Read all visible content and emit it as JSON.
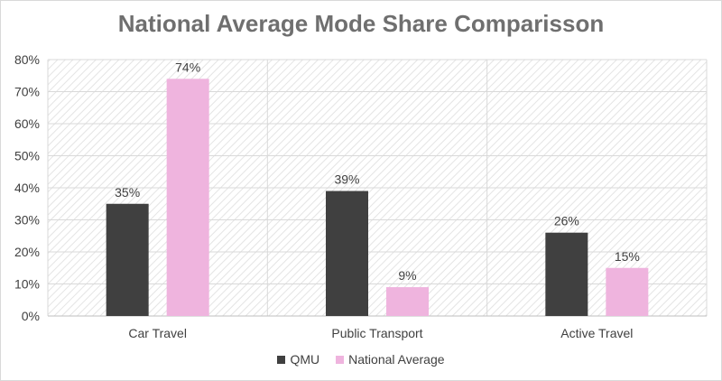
{
  "chart_data": {
    "type": "bar",
    "title": "National Average Mode Share Comparisson",
    "xlabel": "",
    "ylabel": "",
    "categories": [
      "Car Travel",
      "Public Transport",
      "Active Travel"
    ],
    "series": [
      {
        "name": "QMU",
        "values": [
          35,
          39,
          26
        ],
        "color": "#404040",
        "labels": [
          "35%",
          "39%",
          "26%"
        ]
      },
      {
        "name": "National Average",
        "values": [
          74,
          9,
          15
        ],
        "color": "#efb4de",
        "labels": [
          "74%",
          "9%",
          "15%"
        ]
      }
    ],
    "ylim": [
      0,
      80
    ],
    "yticks": [
      0,
      10,
      20,
      30,
      40,
      50,
      60,
      70,
      80
    ],
    "ytick_labels": [
      "0%",
      "10%",
      "20%",
      "30%",
      "40%",
      "50%",
      "60%",
      "70%",
      "80%"
    ],
    "grid": true,
    "plot_background": "hatched light gray",
    "legend_position": "bottom"
  }
}
